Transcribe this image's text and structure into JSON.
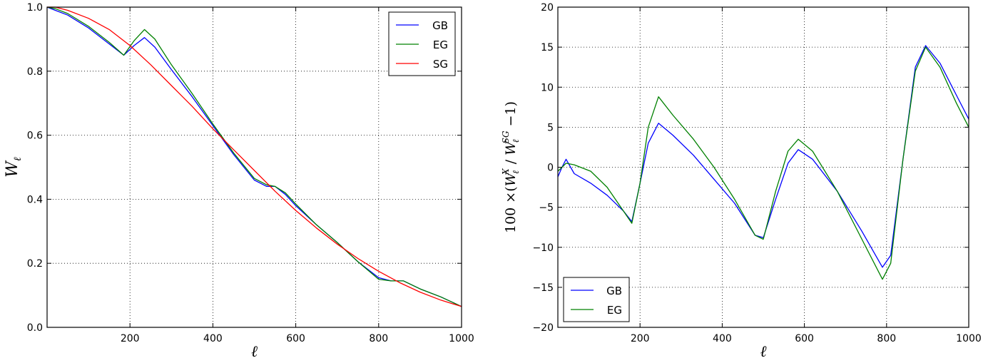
{
  "chart_data": [
    {
      "type": "line",
      "title": "",
      "xlabel": "ℓ",
      "ylabel": "W_ℓ",
      "xlim": [
        0,
        1000
      ],
      "ylim": [
        0.0,
        1.0
      ],
      "grid": true,
      "legend_position": "top-right",
      "x_ticks": [
        "200",
        "400",
        "600",
        "800",
        "1000"
      ],
      "y_ticks": [
        "0.0",
        "0.2",
        "0.4",
        "0.6",
        "0.8",
        "1.0"
      ],
      "series": [
        {
          "name": "GB",
          "color": "#0000ff",
          "x": [
            0,
            20,
            50,
            100,
            150,
            185,
            210,
            235,
            260,
            300,
            350,
            400,
            450,
            500,
            530,
            550,
            575,
            600,
            650,
            700,
            750,
            800,
            830,
            860,
            900,
            950,
            1000
          ],
          "y": [
            1.0,
            0.99,
            0.975,
            0.935,
            0.885,
            0.85,
            0.88,
            0.905,
            0.875,
            0.805,
            0.72,
            0.63,
            0.54,
            0.46,
            0.44,
            0.44,
            0.415,
            0.38,
            0.32,
            0.265,
            0.205,
            0.155,
            0.145,
            0.145,
            0.12,
            0.095,
            0.065
          ]
        },
        {
          "name": "EG",
          "color": "#008000",
          "x": [
            0,
            20,
            50,
            100,
            150,
            185,
            210,
            235,
            260,
            300,
            350,
            400,
            450,
            500,
            530,
            550,
            575,
            600,
            650,
            700,
            750,
            800,
            830,
            860,
            900,
            950,
            1000
          ],
          "y": [
            1.0,
            0.995,
            0.98,
            0.94,
            0.89,
            0.85,
            0.895,
            0.93,
            0.9,
            0.82,
            0.73,
            0.635,
            0.545,
            0.465,
            0.445,
            0.44,
            0.42,
            0.385,
            0.32,
            0.265,
            0.205,
            0.15,
            0.145,
            0.145,
            0.12,
            0.095,
            0.065
          ]
        },
        {
          "name": "SG",
          "color": "#ff0000",
          "x": [
            0,
            20,
            50,
            100,
            150,
            200,
            250,
            300,
            350,
            400,
            450,
            500,
            550,
            600,
            650,
            700,
            750,
            800,
            850,
            900,
            950,
            1000
          ],
          "y": [
            1.0,
            1.0,
            0.99,
            0.965,
            0.93,
            0.88,
            0.82,
            0.755,
            0.69,
            0.62,
            0.555,
            0.49,
            0.425,
            0.365,
            0.31,
            0.26,
            0.215,
            0.175,
            0.14,
            0.11,
            0.085,
            0.065
          ]
        }
      ]
    },
    {
      "type": "line",
      "title": "",
      "xlabel": "ℓ",
      "ylabel": "100 ×(W_ℓ^X / W_ℓ^SG − 1)",
      "xlim": [
        0,
        1000
      ],
      "ylim": [
        -20,
        20
      ],
      "grid": true,
      "legend_position": "bottom-left",
      "x_ticks": [
        "200",
        "400",
        "600",
        "800",
        "1000"
      ],
      "y_ticks": [
        "−20",
        "−15",
        "−10",
        "−5",
        "0",
        "5",
        "10",
        "15",
        "20"
      ],
      "series": [
        {
          "name": "GB",
          "color": "#0000ff",
          "x": [
            0,
            10,
            20,
            40,
            80,
            120,
            160,
            180,
            200,
            220,
            245,
            280,
            330,
            380,
            430,
            480,
            500,
            530,
            560,
            585,
            620,
            680,
            740,
            790,
            810,
            840,
            870,
            895,
            930,
            970,
            1000
          ],
          "y": [
            -1.2,
            0.0,
            1.0,
            -0.8,
            -2.0,
            -3.5,
            -5.5,
            -6.8,
            -2.0,
            3.0,
            5.5,
            4.0,
            1.5,
            -1.5,
            -4.5,
            -8.5,
            -8.8,
            -4.0,
            0.5,
            2.2,
            1.0,
            -3.0,
            -8.0,
            -12.5,
            -11.0,
            1.0,
            12.5,
            15.2,
            13.0,
            9.0,
            6.0
          ]
        },
        {
          "name": "EG",
          "color": "#008000",
          "x": [
            0,
            10,
            20,
            40,
            80,
            120,
            160,
            180,
            200,
            220,
            245,
            280,
            330,
            380,
            430,
            480,
            500,
            530,
            560,
            585,
            620,
            680,
            740,
            790,
            810,
            840,
            870,
            895,
            930,
            970,
            1000
          ],
          "y": [
            -0.5,
            0.0,
            0.5,
            0.3,
            -0.5,
            -2.5,
            -5.5,
            -7.0,
            -2.0,
            5.0,
            8.8,
            6.5,
            3.5,
            0.0,
            -4.0,
            -8.5,
            -9.0,
            -3.0,
            2.0,
            3.5,
            2.0,
            -3.0,
            -9.0,
            -14.0,
            -12.0,
            1.0,
            12.0,
            15.0,
            12.5,
            8.0,
            5.0
          ]
        }
      ]
    }
  ]
}
